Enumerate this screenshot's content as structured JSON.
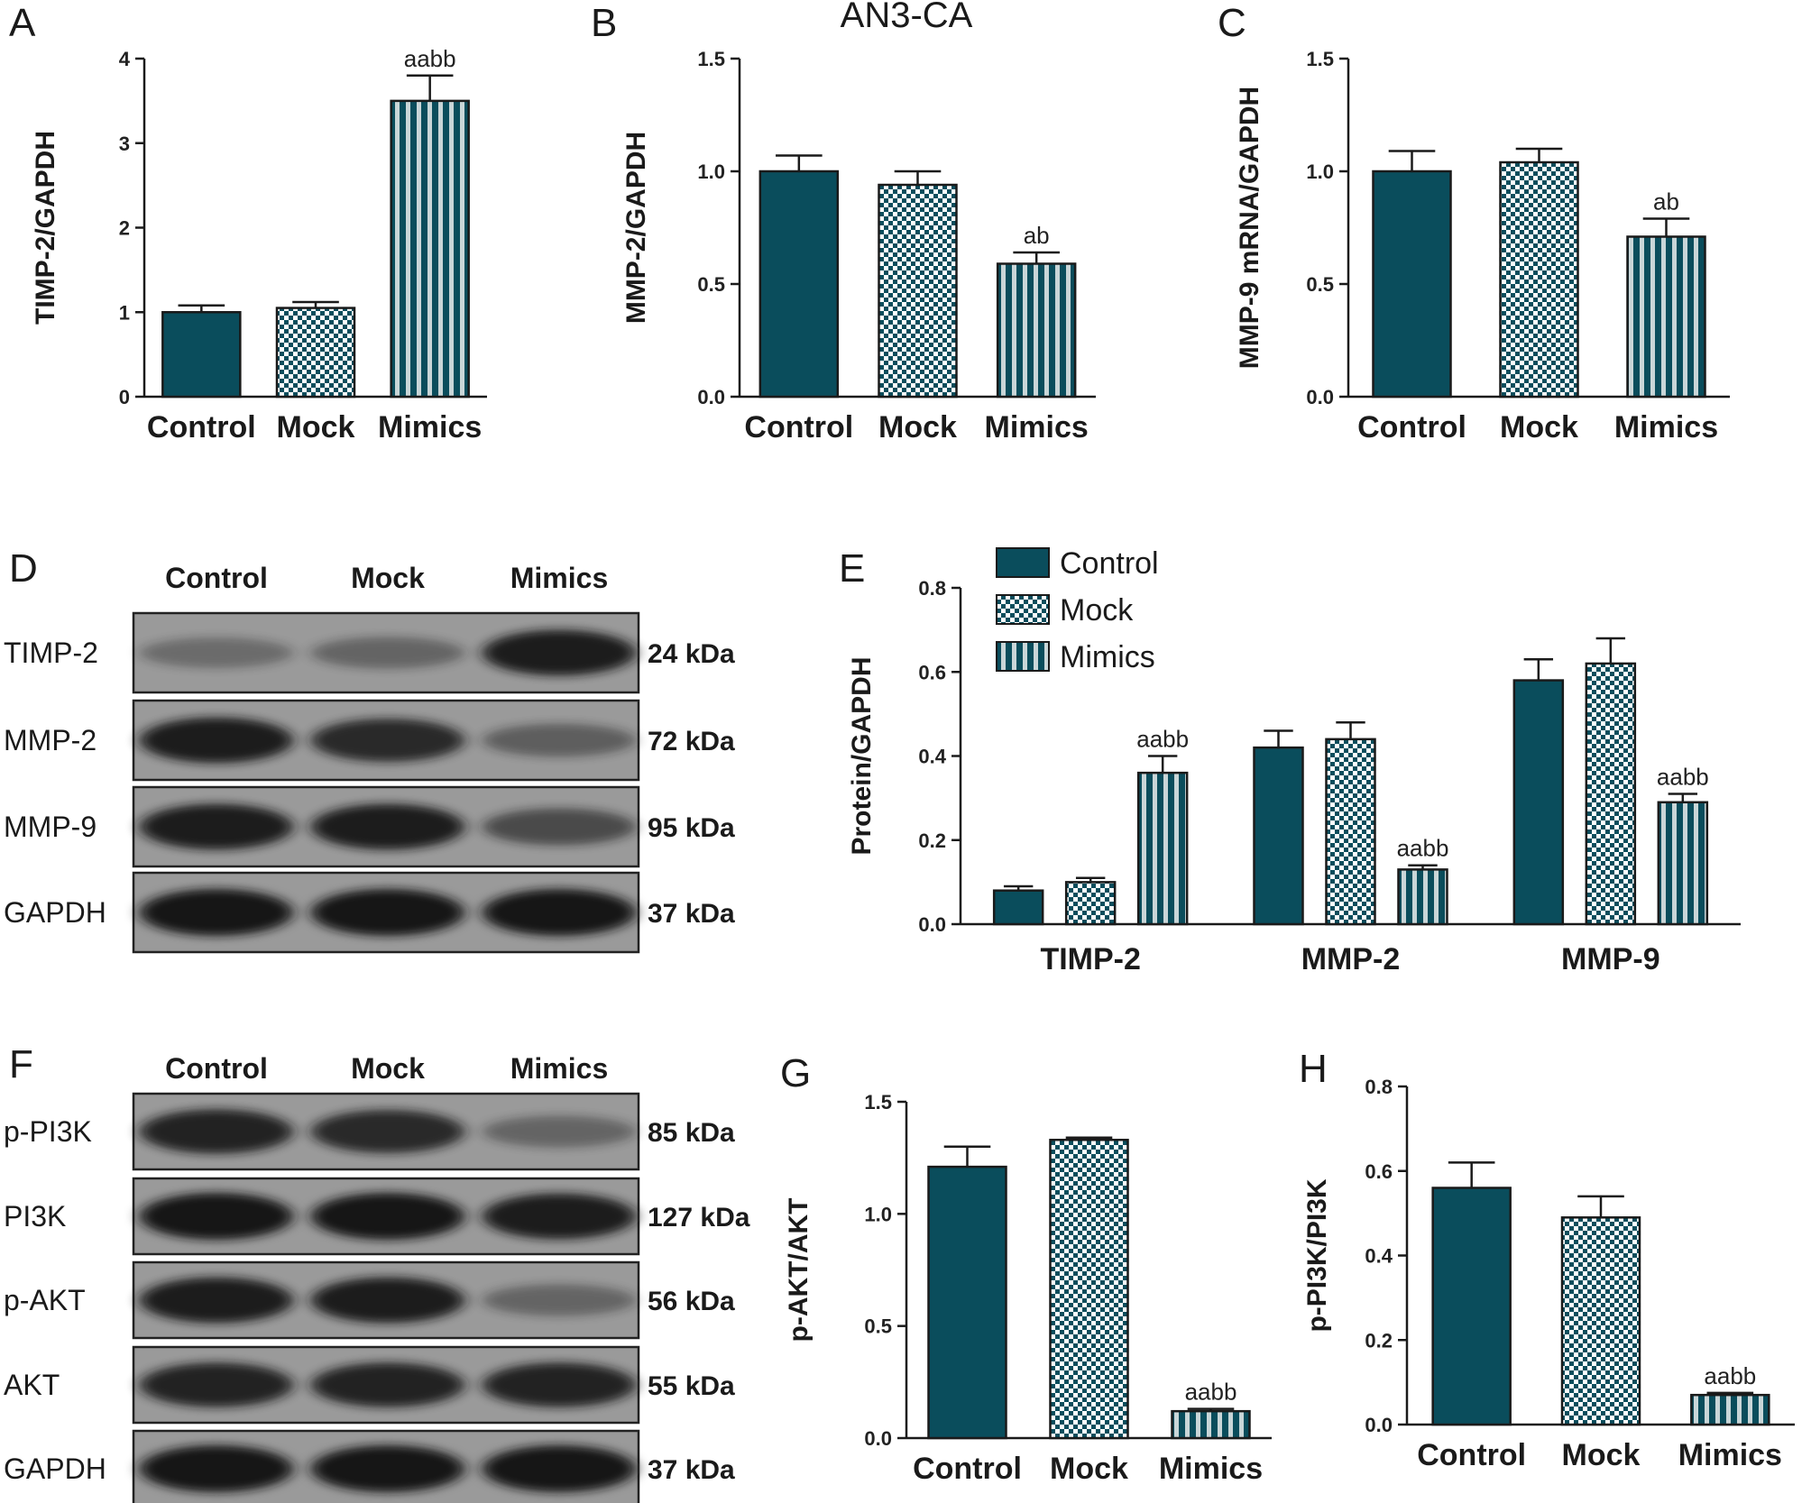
{
  "colors": {
    "bar": "#0a4d5c",
    "axis": "#1a1a1a",
    "membrane": "#9a9a9a"
  },
  "patterns": [
    "solid",
    "checker",
    "stripes"
  ],
  "chart_data": [
    {
      "panel": "A",
      "type": "bar",
      "title": "",
      "ylabel": "TIMP-2/GAPDH",
      "categories": [
        "Control",
        "Mock",
        "Mimics"
      ],
      "values": [
        1.0,
        1.05,
        3.5
      ],
      "errors": [
        0.08,
        0.07,
        0.3
      ],
      "annotations": [
        "",
        "",
        "aabb"
      ],
      "ylim": [
        0,
        4
      ],
      "yticks": [
        0,
        1,
        2,
        3,
        4
      ],
      "tick_labels": [
        "0",
        "1",
        "2",
        "3",
        "4"
      ]
    },
    {
      "panel": "B",
      "type": "bar",
      "title": "AN3-CA",
      "ylabel": "MMP-2/GAPDH",
      "categories": [
        "Control",
        "Mock",
        "Mimics"
      ],
      "values": [
        1.0,
        0.94,
        0.59
      ],
      "errors": [
        0.07,
        0.06,
        0.05
      ],
      "annotations": [
        "",
        "",
        "ab"
      ],
      "ylim": [
        0,
        1.5
      ],
      "yticks": [
        0,
        0.5,
        1.0,
        1.5
      ],
      "tick_labels": [
        "0.0",
        "0.5",
        "1.0",
        "1.5"
      ]
    },
    {
      "panel": "C",
      "type": "bar",
      "title": "",
      "ylabel": "MMP-9 mRNA/GAPDH",
      "categories": [
        "Control",
        "Mock",
        "Mimics"
      ],
      "values": [
        1.0,
        1.04,
        0.71
      ],
      "errors": [
        0.09,
        0.06,
        0.08
      ],
      "annotations": [
        "",
        "",
        "ab"
      ],
      "ylim": [
        0,
        1.5
      ],
      "yticks": [
        0,
        0.5,
        1.0,
        1.5
      ],
      "tick_labels": [
        "0.0",
        "0.5",
        "1.0",
        "1.5"
      ]
    },
    {
      "panel": "E",
      "type": "bar",
      "title": "",
      "ylabel": "Protein/GAPDH",
      "categories": [
        "TIMP-2",
        "MMP-2",
        "MMP-9"
      ],
      "series": [
        {
          "name": "Control",
          "values": [
            0.08,
            0.42,
            0.58
          ],
          "errors": [
            0.01,
            0.04,
            0.05
          ]
        },
        {
          "name": "Mock",
          "values": [
            0.1,
            0.44,
            0.62
          ],
          "errors": [
            0.01,
            0.04,
            0.06
          ]
        },
        {
          "name": "Mimics",
          "values": [
            0.36,
            0.13,
            0.29
          ],
          "errors": [
            0.04,
            0.01,
            0.02
          ]
        }
      ],
      "annotations": [
        [
          "",
          "",
          "aabb"
        ],
        [
          "",
          "",
          "aabb"
        ],
        [
          "",
          "",
          "aabb"
        ]
      ],
      "legend": "top-left",
      "ylim": [
        0,
        0.8
      ],
      "yticks": [
        0,
        0.2,
        0.4,
        0.6,
        0.8
      ],
      "tick_labels": [
        "0.0",
        "0.2",
        "0.4",
        "0.6",
        "0.8"
      ]
    },
    {
      "panel": "G",
      "type": "bar",
      "title": "",
      "ylabel": "p-AKT/AKT",
      "categories": [
        "Control",
        "Mock",
        "Mimics"
      ],
      "values": [
        1.21,
        1.33,
        0.12
      ],
      "errors": [
        0.09,
        0.01,
        0.01
      ],
      "annotations": [
        "",
        "",
        "aabb"
      ],
      "ylim": [
        0,
        1.5
      ],
      "yticks": [
        0,
        0.5,
        1.0,
        1.5
      ],
      "tick_labels": [
        "0.0",
        "0.5",
        "1.0",
        "1.5"
      ]
    },
    {
      "panel": "H",
      "type": "bar",
      "title": "",
      "ylabel": "p-PI3K/PI3K",
      "categories": [
        "Control",
        "Mock",
        "Mimics"
      ],
      "values": [
        0.56,
        0.49,
        0.07
      ],
      "errors": [
        0.06,
        0.05,
        0.005
      ],
      "annotations": [
        "",
        "",
        "aabb"
      ],
      "ylim": [
        0,
        0.8
      ],
      "yticks": [
        0,
        0.2,
        0.4,
        0.6,
        0.8
      ],
      "tick_labels": [
        "0.0",
        "0.2",
        "0.4",
        "0.6",
        "0.8"
      ]
    }
  ],
  "blots": [
    {
      "panel": "D",
      "lanes": [
        "Control",
        "Mock",
        "Mimics"
      ],
      "rows": [
        {
          "protein": "TIMP-2",
          "size": "24 kDa",
          "intensity": [
            0.35,
            0.4,
            0.95
          ]
        },
        {
          "protein": "MMP-2",
          "size": "72 kDa",
          "intensity": [
            0.95,
            0.85,
            0.45
          ]
        },
        {
          "protein": "MMP-9",
          "size": "95 kDa",
          "intensity": [
            0.95,
            0.95,
            0.6
          ]
        },
        {
          "protein": "GAPDH",
          "size": "37  kDa",
          "intensity": [
            1,
            1,
            1
          ]
        }
      ]
    },
    {
      "panel": "F",
      "lanes": [
        "Control",
        "Mock",
        "Mimics"
      ],
      "rows": [
        {
          "protein": "p-PI3K",
          "size": "85 kDa",
          "intensity": [
            0.9,
            0.85,
            0.4
          ]
        },
        {
          "protein": "PI3K",
          "size": "127 kDa",
          "intensity": [
            1,
            1,
            0.95
          ]
        },
        {
          "protein": "p-AKT",
          "size": "56 kDa",
          "intensity": [
            0.95,
            0.95,
            0.4
          ]
        },
        {
          "protein": "AKT",
          "size": "55  kDa",
          "intensity": [
            0.9,
            0.9,
            0.9
          ]
        },
        {
          "protein": "GAPDH",
          "size": "37  kDa",
          "intensity": [
            1,
            1,
            1
          ]
        }
      ]
    }
  ]
}
